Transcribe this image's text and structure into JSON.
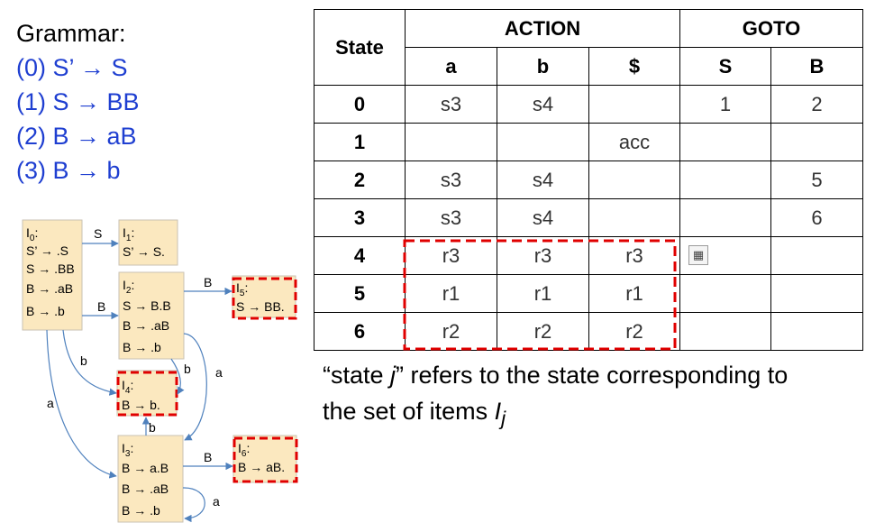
{
  "grammar": {
    "title": "Grammar:",
    "rules": [
      "(0) S’ → S",
      "(1) S → BB",
      "(2) B → aB",
      "(3) B → b"
    ]
  },
  "table": {
    "state_header": "State",
    "action_header": "ACTION",
    "goto_header": "GOTO",
    "columns": [
      "a",
      "b",
      "$",
      "S",
      "B"
    ],
    "rows": [
      {
        "state": "0",
        "cells": [
          "s3",
          "s4",
          "",
          "1",
          "2"
        ]
      },
      {
        "state": "1",
        "cells": [
          "",
          "",
          "acc",
          "",
          ""
        ]
      },
      {
        "state": "2",
        "cells": [
          "s3",
          "s4",
          "",
          "",
          "5"
        ]
      },
      {
        "state": "3",
        "cells": [
          "s3",
          "s4",
          "",
          "",
          "6"
        ]
      },
      {
        "state": "4",
        "cells": [
          "r3",
          "r3",
          "r3",
          "",
          ""
        ]
      },
      {
        "state": "5",
        "cells": [
          "r1",
          "r1",
          "r1",
          "",
          ""
        ]
      },
      {
        "state": "6",
        "cells": [
          "r2",
          "r2",
          "r2",
          "",
          ""
        ]
      }
    ]
  },
  "note": {
    "line1_pre": "“state ",
    "line1_var": "j",
    "line1_post": "” refers to the state corresponding to",
    "line2_pre": "the set of items ",
    "line2_var": "I",
    "line2_sub": "j"
  },
  "icons": {
    "table_tool": "table-select-icon"
  },
  "colors": {
    "rule_blue": "#1f3fd1",
    "highlight_red": "#e00000",
    "item_box": "#fbe8bf",
    "edge_blue": "#4f81bd"
  },
  "automaton": {
    "states": [
      {
        "name": "I",
        "sub": "0",
        "items": [
          "S’ → .S",
          "S → .BB",
          "B → .aB",
          "B → .b"
        ]
      },
      {
        "name": "I",
        "sub": "1",
        "items": [
          "S’ → S."
        ]
      },
      {
        "name": "I",
        "sub": "2",
        "items": [
          "S → B.B",
          "B → .aB",
          "B → .b"
        ]
      },
      {
        "name": "I",
        "sub": "5",
        "items": [
          "S → BB."
        ]
      },
      {
        "name": "I",
        "sub": "4",
        "items": [
          "B → b."
        ]
      },
      {
        "name": "I",
        "sub": "3",
        "items": [
          "B → a.B",
          "B → .aB",
          "B → .b"
        ]
      },
      {
        "name": "I",
        "sub": "6",
        "items": [
          "B → aB."
        ]
      }
    ],
    "edge_labels": [
      "S",
      "B",
      "B",
      "b",
      "b",
      "a",
      "a",
      "b",
      "B",
      "a"
    ]
  }
}
